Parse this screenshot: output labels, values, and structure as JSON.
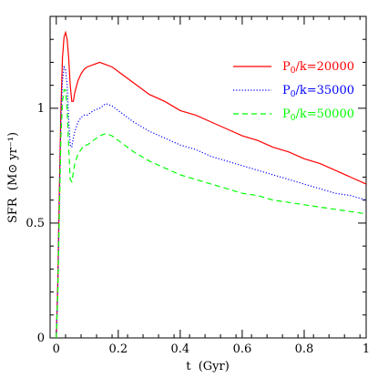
{
  "chart_data": {
    "type": "line",
    "title": "",
    "xlabel": "t  (Gyr)",
    "ylabel": "SFR  (M⊙ yr⁻¹)",
    "xlim": [
      -0.02,
      1.0
    ],
    "ylim": [
      0,
      1.4
    ],
    "xticks": [
      0,
      0.2,
      0.4,
      0.6,
      0.8,
      1
    ],
    "xtick_labels": [
      "0",
      "0.2",
      "0.4",
      "0.6",
      "0.8",
      "1"
    ],
    "yticks": [
      0,
      0.5,
      1
    ],
    "ytick_labels": [
      "0",
      "0.5",
      "1"
    ],
    "grid": false,
    "legend_position": "top-right",
    "series": [
      {
        "name": "P0/k=20000",
        "name_parts": [
          "P",
          "0",
          "/k=20000"
        ],
        "color": "#ff0000",
        "style": "solid",
        "x": [
          0.0,
          0.005,
          0.01,
          0.015,
          0.02,
          0.025,
          0.03,
          0.035,
          0.04,
          0.045,
          0.05,
          0.055,
          0.06,
          0.07,
          0.08,
          0.09,
          0.1,
          0.12,
          0.14,
          0.16,
          0.18,
          0.2,
          0.25,
          0.3,
          0.35,
          0.4,
          0.45,
          0.5,
          0.55,
          0.6,
          0.65,
          0.7,
          0.75,
          0.8,
          0.85,
          0.9,
          0.95,
          1.0
        ],
        "y": [
          0.0,
          0.25,
          0.65,
          1.0,
          1.22,
          1.31,
          1.33,
          1.3,
          1.22,
          1.1,
          1.03,
          1.03,
          1.07,
          1.12,
          1.15,
          1.17,
          1.18,
          1.19,
          1.2,
          1.19,
          1.18,
          1.16,
          1.11,
          1.06,
          1.03,
          0.99,
          0.97,
          0.94,
          0.91,
          0.88,
          0.86,
          0.83,
          0.81,
          0.78,
          0.76,
          0.73,
          0.7,
          0.67
        ]
      },
      {
        "name": "P0/k=35000",
        "name_parts": [
          "P",
          "0",
          "/k=35000"
        ],
        "color": "#0000ff",
        "style": "dotted",
        "x": [
          0.0,
          0.005,
          0.01,
          0.015,
          0.02,
          0.025,
          0.03,
          0.035,
          0.04,
          0.045,
          0.05,
          0.055,
          0.06,
          0.07,
          0.08,
          0.09,
          0.1,
          0.12,
          0.14,
          0.16,
          0.18,
          0.2,
          0.25,
          0.3,
          0.35,
          0.4,
          0.45,
          0.5,
          0.55,
          0.6,
          0.65,
          0.7,
          0.75,
          0.8,
          0.85,
          0.9,
          0.95,
          1.0
        ],
        "y": [
          0.0,
          0.22,
          0.6,
          0.95,
          1.12,
          1.18,
          1.17,
          1.1,
          0.95,
          0.84,
          0.83,
          0.87,
          0.9,
          0.94,
          0.96,
          0.97,
          0.97,
          0.99,
          1.0,
          1.02,
          1.01,
          0.99,
          0.94,
          0.9,
          0.87,
          0.84,
          0.82,
          0.79,
          0.77,
          0.75,
          0.73,
          0.71,
          0.69,
          0.67,
          0.65,
          0.63,
          0.62,
          0.6
        ]
      },
      {
        "name": "P0/k=50000",
        "name_parts": [
          "P",
          "0",
          "/k=50000"
        ],
        "color": "#00ff00",
        "style": "dashed",
        "x": [
          0.0,
          0.005,
          0.01,
          0.015,
          0.02,
          0.025,
          0.03,
          0.035,
          0.04,
          0.045,
          0.05,
          0.055,
          0.06,
          0.07,
          0.08,
          0.09,
          0.1,
          0.12,
          0.14,
          0.16,
          0.18,
          0.2,
          0.25,
          0.3,
          0.35,
          0.4,
          0.45,
          0.5,
          0.55,
          0.6,
          0.65,
          0.7,
          0.75,
          0.8,
          0.85,
          0.9,
          0.95,
          1.0
        ],
        "y": [
          0.0,
          0.2,
          0.55,
          0.88,
          1.03,
          1.08,
          1.08,
          1.0,
          0.83,
          0.69,
          0.68,
          0.72,
          0.76,
          0.8,
          0.82,
          0.84,
          0.84,
          0.86,
          0.88,
          0.89,
          0.88,
          0.86,
          0.81,
          0.77,
          0.74,
          0.71,
          0.69,
          0.67,
          0.65,
          0.63,
          0.62,
          0.6,
          0.59,
          0.58,
          0.57,
          0.56,
          0.55,
          0.54
        ]
      }
    ]
  }
}
